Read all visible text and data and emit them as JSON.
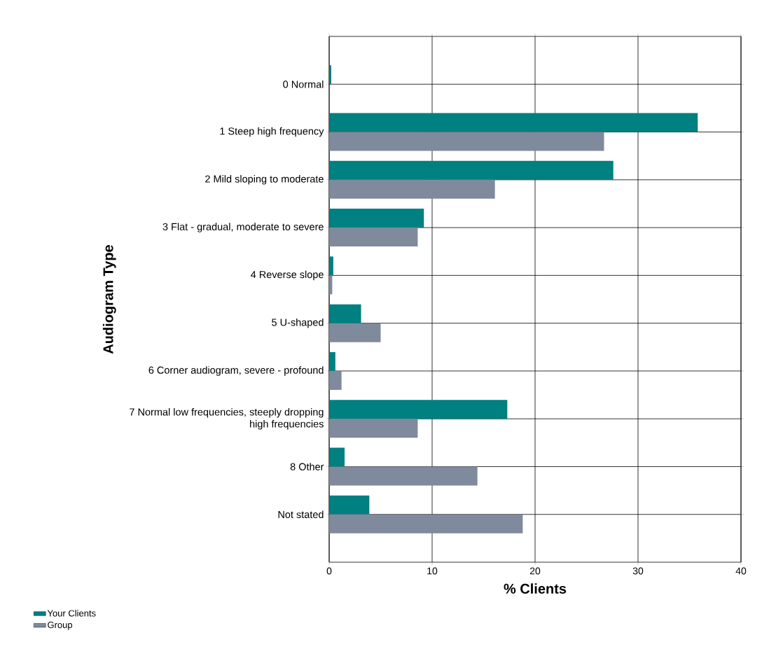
{
  "chart_data": {
    "type": "bar",
    "orientation": "horizontal",
    "xlabel": "% Clients",
    "ylabel": "Audiogram Type",
    "categories": [
      "0 Normal",
      "1 Steep high frequency",
      "2 Mild sloping to moderate",
      "3 Flat - gradual, moderate to severe",
      "4 Reverse slope",
      "5 U-shaped",
      "6 Corner audiogram, severe - profound",
      "7 Normal low frequencies, steeply dropping high frequencies",
      "8 Other",
      "Not stated"
    ],
    "series": [
      {
        "name": "Your Clients",
        "color": "#008080",
        "values": [
          0.2,
          35.8,
          27.6,
          9.2,
          0.4,
          3.1,
          0.6,
          17.3,
          1.5,
          3.9
        ]
      },
      {
        "name": "Group",
        "color": "#7f8a9c",
        "values": [
          0,
          26.7,
          16.1,
          8.6,
          0.3,
          5.0,
          1.2,
          8.6,
          14.4,
          18.8
        ]
      }
    ],
    "xlim": [
      0,
      40
    ],
    "xticks": [
      0,
      10,
      20,
      30,
      40
    ],
    "grid": true,
    "legend": "bottom left"
  }
}
